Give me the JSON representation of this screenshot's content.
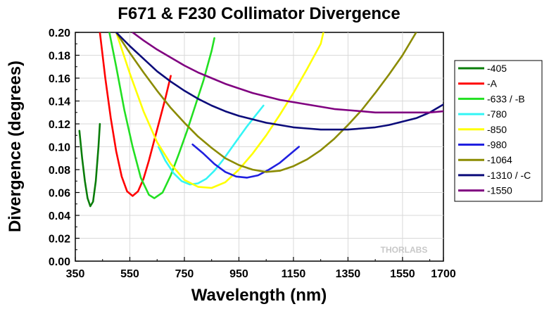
{
  "chart_data": {
    "type": "line",
    "title": "F671 & F230 Collimator Divergence",
    "xlabel": "Wavelength (nm)",
    "ylabel": "Divergence (degrees)",
    "xlim": [
      350,
      1700
    ],
    "ylim": [
      0.0,
      0.2
    ],
    "x_ticks": [
      "350",
      "550",
      "750",
      "950",
      "1150",
      "1350",
      "1550",
      "1700"
    ],
    "y_ticks": [
      "0.00",
      "0.02",
      "0.04",
      "0.06",
      "0.08",
      "0.10",
      "0.12",
      "0.14",
      "0.16",
      "0.18",
      "0.20"
    ],
    "grid": true,
    "legend_position": "right",
    "watermark": "THORLABS",
    "series": [
      {
        "name": "-405",
        "color": "#0a7d0a",
        "x": [
          365,
          375,
          385,
          395,
          405,
          415,
          425,
          435,
          440
        ],
        "y": [
          0.114,
          0.09,
          0.07,
          0.055,
          0.048,
          0.052,
          0.07,
          0.1,
          0.12
        ]
      },
      {
        "name": "-A",
        "color": "#ff0000",
        "x": [
          440,
          460,
          480,
          500,
          520,
          540,
          560,
          580,
          600,
          620,
          640,
          660,
          680,
          700
        ],
        "y": [
          0.2,
          0.16,
          0.125,
          0.096,
          0.074,
          0.061,
          0.057,
          0.061,
          0.072,
          0.088,
          0.106,
          0.124,
          0.142,
          0.162
        ]
      },
      {
        "name": "-633 / -B",
        "color": "#22e022",
        "x": [
          475,
          500,
          530,
          560,
          590,
          620,
          640,
          670,
          700,
          730,
          760,
          790,
          820,
          850,
          860
        ],
        "y": [
          0.2,
          0.17,
          0.132,
          0.1,
          0.073,
          0.058,
          0.055,
          0.06,
          0.075,
          0.094,
          0.114,
          0.136,
          0.158,
          0.184,
          0.195
        ]
      },
      {
        "name": "-780",
        "color": "#33f5f5",
        "x": [
          655,
          680,
          710,
          740,
          770,
          800,
          830,
          860,
          890,
          920,
          950,
          980,
          1010,
          1040
        ],
        "y": [
          0.1,
          0.088,
          0.077,
          0.07,
          0.067,
          0.068,
          0.072,
          0.079,
          0.088,
          0.098,
          0.108,
          0.118,
          0.127,
          0.136
        ]
      },
      {
        "name": "-850",
        "color": "#ffff00",
        "x": [
          500,
          550,
          600,
          650,
          700,
          750,
          800,
          850,
          900,
          950,
          1000,
          1050,
          1100,
          1150,
          1200,
          1250,
          1260
        ],
        "y": [
          0.2,
          0.164,
          0.131,
          0.104,
          0.085,
          0.071,
          0.065,
          0.064,
          0.069,
          0.08,
          0.094,
          0.11,
          0.128,
          0.147,
          0.168,
          0.19,
          0.2
        ]
      },
      {
        "name": "-980",
        "color": "#2020e0",
        "x": [
          780,
          820,
          860,
          900,
          940,
          980,
          1020,
          1060,
          1100,
          1140,
          1170
        ],
        "y": [
          0.102,
          0.094,
          0.085,
          0.078,
          0.074,
          0.073,
          0.075,
          0.08,
          0.086,
          0.094,
          0.1
        ]
      },
      {
        "name": "-1064",
        "color": "#8b8b00",
        "x": [
          500,
          550,
          600,
          650,
          700,
          750,
          800,
          850,
          900,
          950,
          1000,
          1050,
          1100,
          1150,
          1200,
          1250,
          1300,
          1350,
          1400,
          1450,
          1500,
          1550,
          1600
        ],
        "y": [
          0.2,
          0.182,
          0.165,
          0.149,
          0.134,
          0.121,
          0.109,
          0.099,
          0.09,
          0.084,
          0.08,
          0.078,
          0.079,
          0.083,
          0.089,
          0.097,
          0.107,
          0.119,
          0.132,
          0.147,
          0.163,
          0.18,
          0.2
        ]
      },
      {
        "name": "-1310 / -C",
        "color": "#0b0b7a",
        "x": [
          500,
          550,
          600,
          650,
          700,
          750,
          800,
          850,
          900,
          950,
          1000,
          1050,
          1100,
          1150,
          1200,
          1250,
          1300,
          1350,
          1400,
          1450,
          1500,
          1550,
          1600,
          1650,
          1700
        ],
        "y": [
          0.2,
          0.188,
          0.177,
          0.166,
          0.157,
          0.149,
          0.142,
          0.136,
          0.131,
          0.127,
          0.124,
          0.121,
          0.119,
          0.117,
          0.116,
          0.115,
          0.115,
          0.115,
          0.116,
          0.117,
          0.119,
          0.122,
          0.125,
          0.13,
          0.137
        ]
      },
      {
        "name": "-1550",
        "color": "#800080",
        "x": [
          560,
          600,
          650,
          700,
          750,
          800,
          850,
          900,
          950,
          1000,
          1050,
          1100,
          1150,
          1200,
          1250,
          1300,
          1350,
          1400,
          1450,
          1500,
          1550,
          1600,
          1650,
          1700
        ],
        "y": [
          0.2,
          0.193,
          0.185,
          0.178,
          0.171,
          0.165,
          0.16,
          0.155,
          0.151,
          0.147,
          0.144,
          0.141,
          0.139,
          0.137,
          0.135,
          0.133,
          0.132,
          0.131,
          0.13,
          0.13,
          0.13,
          0.13,
          0.13,
          0.131
        ]
      }
    ]
  }
}
